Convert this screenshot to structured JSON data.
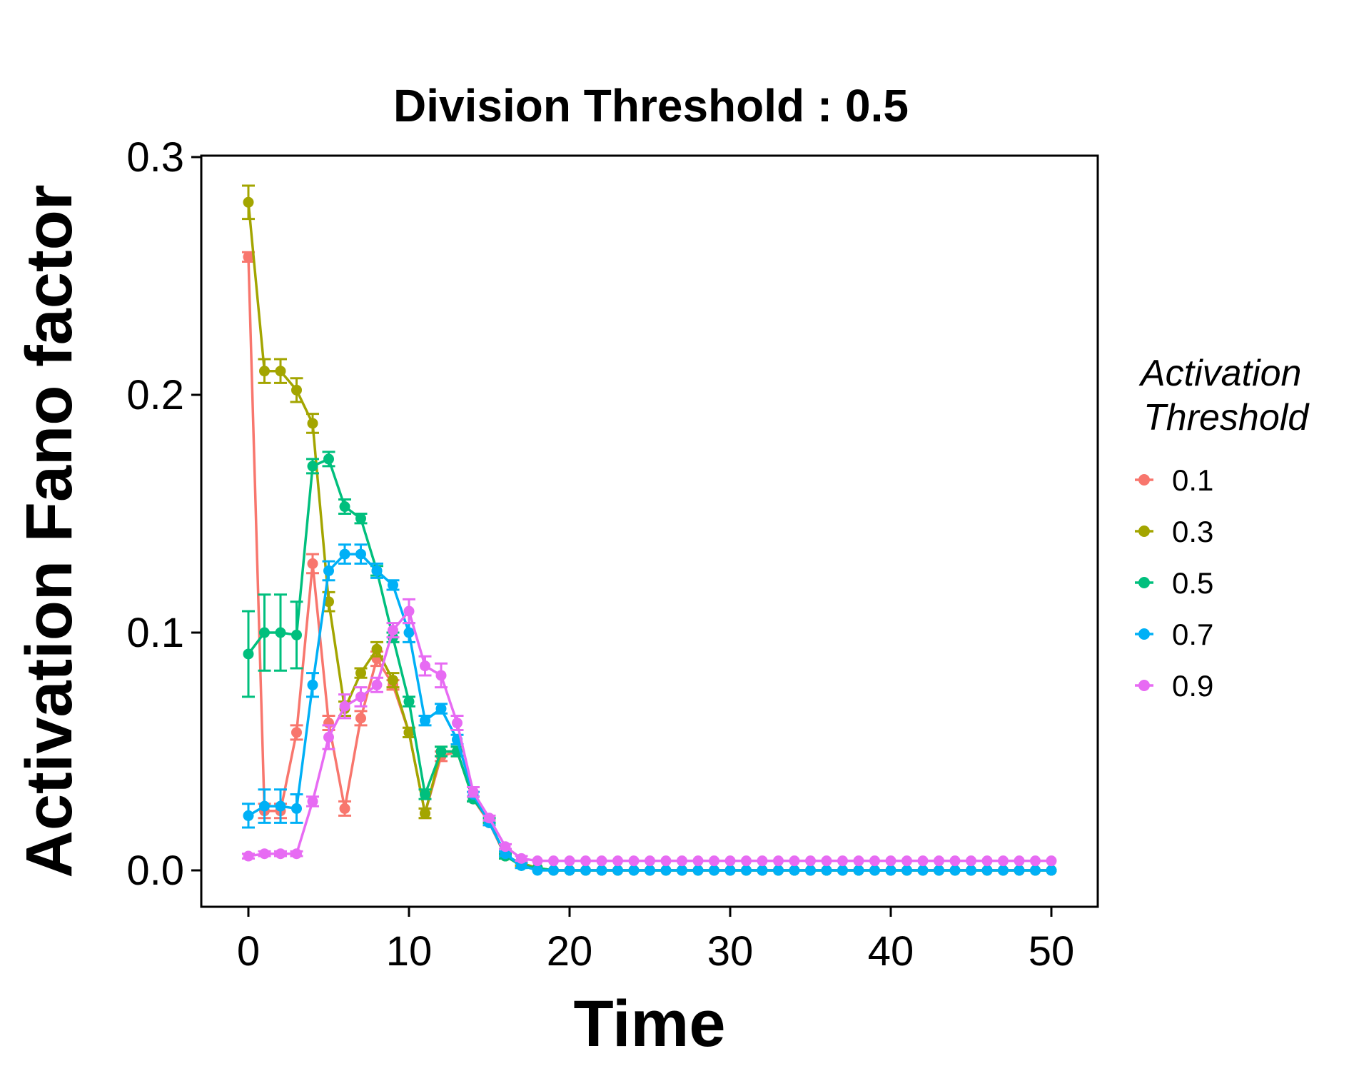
{
  "chart_data": {
    "type": "line",
    "title": "Division Threshold : 0.5",
    "xlabel": "Time",
    "ylabel": "Activation Fano factor",
    "xlim": [
      -3,
      53
    ],
    "ylim": [
      -0.015,
      0.3
    ],
    "x_ticks": [
      "0",
      "10",
      "20",
      "30",
      "40",
      "50"
    ],
    "y_ticks": [
      "0.0",
      "0.1",
      "0.2",
      "0.3"
    ],
    "grid": false,
    "error_bars": true,
    "legend": {
      "title_line1": "Activation",
      "title_line2": "Threshold",
      "placement": "right"
    },
    "x": [
      0,
      1,
      2,
      3,
      4,
      5,
      6,
      7,
      8,
      9,
      10,
      11,
      12,
      13,
      14,
      15,
      16,
      17,
      18,
      19,
      20,
      21,
      22,
      23,
      24,
      25,
      26,
      27,
      28,
      29,
      30,
      31,
      32,
      33,
      34,
      35,
      36,
      37,
      38,
      39,
      40,
      41,
      42,
      43,
      44,
      45,
      46,
      47,
      48,
      49,
      50
    ],
    "series": [
      {
        "name": "0.1",
        "color": "#F8766D",
        "values": [
          0.258,
          0.025,
          0.025,
          0.058,
          0.129,
          0.062,
          0.026,
          0.064,
          0.089,
          0.078,
          0.058,
          0.024,
          0.048,
          0.05,
          0.03,
          0.02,
          0.006,
          0.003,
          0.001,
          0,
          0,
          0,
          0,
          0,
          0,
          0,
          0,
          0,
          0,
          0,
          0,
          0,
          0,
          0,
          0,
          0,
          0,
          0,
          0,
          0,
          0,
          0,
          0,
          0,
          0,
          0,
          0,
          0,
          0,
          0,
          0
        ],
        "errors": [
          0.002,
          0.003,
          0.003,
          0.003,
          0.004,
          0.003,
          0.003,
          0.003,
          0.003,
          0.002,
          0.002,
          0.002,
          0.002,
          0.002,
          0.001,
          0.001,
          0.001,
          0.001,
          0,
          0,
          0,
          0,
          0,
          0,
          0,
          0,
          0,
          0,
          0,
          0,
          0,
          0,
          0,
          0,
          0,
          0,
          0,
          0,
          0,
          0,
          0,
          0,
          0,
          0,
          0,
          0,
          0,
          0,
          0,
          0,
          0
        ]
      },
      {
        "name": "0.3",
        "color": "#A3A500",
        "values": [
          0.281,
          0.21,
          0.21,
          0.202,
          0.188,
          0.113,
          0.068,
          0.083,
          0.093,
          0.08,
          0.058,
          0.024,
          0.05,
          0.05,
          0.03,
          0.021,
          0.006,
          0.003,
          0.001,
          0,
          0,
          0,
          0,
          0,
          0,
          0,
          0,
          0,
          0,
          0,
          0,
          0,
          0,
          0,
          0,
          0,
          0,
          0,
          0,
          0,
          0,
          0,
          0,
          0,
          0,
          0,
          0,
          0,
          0,
          0,
          0
        ],
        "errors": [
          0.007,
          0.005,
          0.005,
          0.005,
          0.004,
          0.004,
          0.003,
          0.002,
          0.003,
          0.003,
          0.002,
          0.002,
          0.002,
          0.002,
          0.001,
          0.001,
          0.001,
          0.001,
          0,
          0,
          0,
          0,
          0,
          0,
          0,
          0,
          0,
          0,
          0,
          0,
          0,
          0,
          0,
          0,
          0,
          0,
          0,
          0,
          0,
          0,
          0,
          0,
          0,
          0,
          0,
          0,
          0,
          0,
          0,
          0,
          0
        ]
      },
      {
        "name": "0.5",
        "color": "#00BF7D",
        "values": [
          0.091,
          0.1,
          0.1,
          0.099,
          0.17,
          0.173,
          0.153,
          0.148,
          0.126,
          0.098,
          0.071,
          0.032,
          0.05,
          0.05,
          0.03,
          0.021,
          0.006,
          0.002,
          0.001,
          0,
          0,
          0,
          0,
          0,
          0,
          0,
          0,
          0,
          0,
          0,
          0,
          0,
          0,
          0,
          0,
          0,
          0,
          0,
          0,
          0,
          0,
          0,
          0,
          0,
          0,
          0,
          0,
          0,
          0,
          0,
          0
        ],
        "errors": [
          0.018,
          0.016,
          0.016,
          0.014,
          0.003,
          0.003,
          0.003,
          0.002,
          0.002,
          0.002,
          0.002,
          0.002,
          0.002,
          0.002,
          0.001,
          0.001,
          0.001,
          0.001,
          0,
          0,
          0,
          0,
          0,
          0,
          0,
          0,
          0,
          0,
          0,
          0,
          0,
          0,
          0,
          0,
          0,
          0,
          0,
          0,
          0,
          0,
          0,
          0,
          0,
          0,
          0,
          0,
          0,
          0,
          0,
          0,
          0
        ]
      },
      {
        "name": "0.7",
        "color": "#00B0F6",
        "values": [
          0.023,
          0.027,
          0.027,
          0.026,
          0.078,
          0.126,
          0.133,
          0.133,
          0.126,
          0.12,
          0.1,
          0.063,
          0.068,
          0.055,
          0.032,
          0.02,
          0.007,
          0.002,
          0,
          0,
          0,
          0,
          0,
          0,
          0,
          0,
          0,
          0,
          0,
          0,
          0,
          0,
          0,
          0,
          0,
          0,
          0,
          0,
          0,
          0,
          0,
          0,
          0,
          0,
          0,
          0,
          0,
          0,
          0,
          0,
          0
        ],
        "errors": [
          0.005,
          0.007,
          0.007,
          0.006,
          0.005,
          0.004,
          0.004,
          0.004,
          0.003,
          0.002,
          0.004,
          0.002,
          0.002,
          0.002,
          0.001,
          0.001,
          0.001,
          0.001,
          0,
          0,
          0,
          0,
          0,
          0,
          0,
          0,
          0,
          0,
          0,
          0,
          0,
          0,
          0,
          0,
          0,
          0,
          0,
          0,
          0,
          0,
          0,
          0,
          0,
          0,
          0,
          0,
          0,
          0,
          0,
          0,
          0
        ]
      },
      {
        "name": "0.9",
        "color": "#E76BF3",
        "values": [
          0.006,
          0.007,
          0.007,
          0.007,
          0.029,
          0.056,
          0.069,
          0.073,
          0.078,
          0.101,
          0.109,
          0.086,
          0.082,
          0.062,
          0.033,
          0.022,
          0.01,
          0.005,
          0.004,
          0.004,
          0.004,
          0.004,
          0.004,
          0.004,
          0.004,
          0.004,
          0.004,
          0.004,
          0.004,
          0.004,
          0.004,
          0.004,
          0.004,
          0.004,
          0.004,
          0.004,
          0.004,
          0.004,
          0.004,
          0.004,
          0.004,
          0.004,
          0.004,
          0.004,
          0.004,
          0.004,
          0.004,
          0.004,
          0.004,
          0.004,
          0.004
        ],
        "errors": [
          0.001,
          0.001,
          0.001,
          0.001,
          0.002,
          0.005,
          0.005,
          0.004,
          0.003,
          0.003,
          0.005,
          0.004,
          0.005,
          0.003,
          0.002,
          0.001,
          0.001,
          0.001,
          0,
          0,
          0,
          0,
          0,
          0,
          0,
          0,
          0,
          0,
          0,
          0,
          0,
          0,
          0,
          0,
          0,
          0,
          0,
          0,
          0,
          0,
          0,
          0,
          0,
          0,
          0,
          0,
          0,
          0,
          0,
          0,
          0
        ]
      }
    ]
  }
}
